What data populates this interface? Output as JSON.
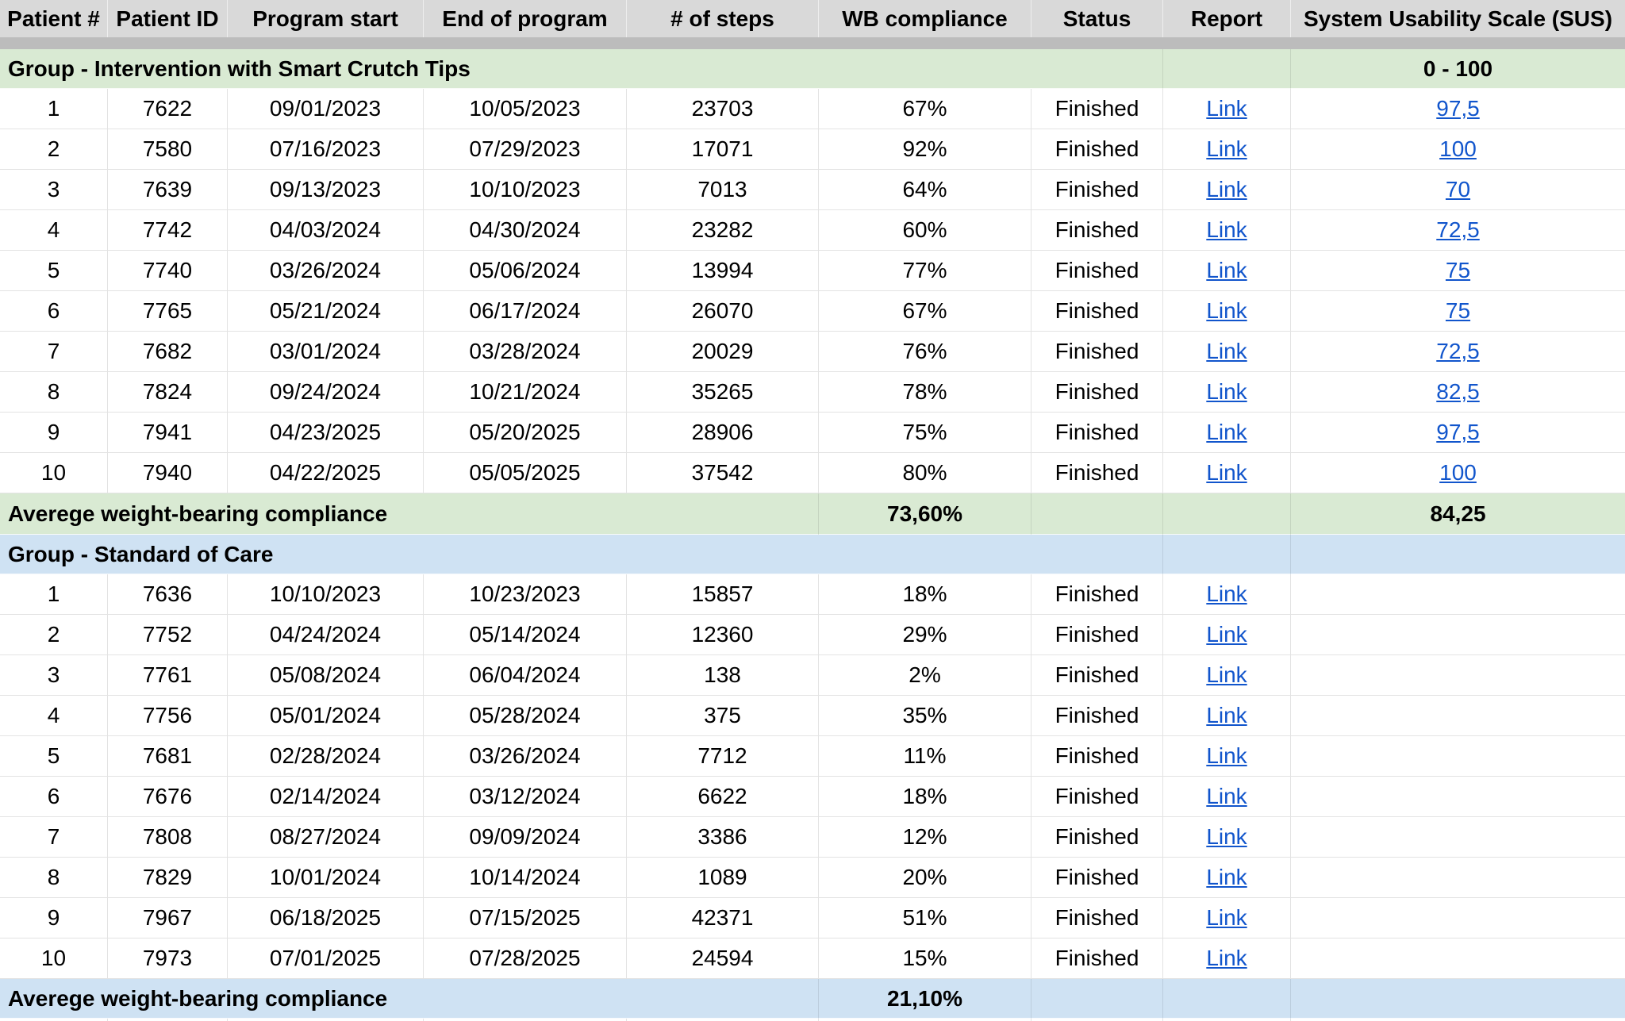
{
  "table": {
    "columns": [
      "Patient #",
      "Patient ID",
      "Program start",
      "End of program",
      "# of steps",
      "WB compliance",
      "Status",
      "Report",
      "System Usability Scale (SUS)"
    ],
    "groups": [
      {
        "label": "Group - Intervention with Smart Crutch Tips",
        "sus_range": "0 - 100",
        "fill_color": "#d9ead3",
        "rows": [
          {
            "num": "1",
            "id": "7622",
            "start": "09/01/2023",
            "end": "10/05/2023",
            "steps": "23703",
            "compliance": "67%",
            "status": "Finished",
            "report": "Link",
            "sus": "97,5"
          },
          {
            "num": "2",
            "id": "7580",
            "start": "07/16/2023",
            "end": "07/29/2023",
            "steps": "17071",
            "compliance": "92%",
            "status": "Finished",
            "report": "Link",
            "sus": "100"
          },
          {
            "num": "3",
            "id": "7639",
            "start": "09/13/2023",
            "end": "10/10/2023",
            "steps": "7013",
            "compliance": "64%",
            "status": "Finished",
            "report": "Link",
            "sus": "70"
          },
          {
            "num": "4",
            "id": "7742",
            "start": "04/03/2024",
            "end": "04/30/2024",
            "steps": "23282",
            "compliance": "60%",
            "status": "Finished",
            "report": "Link",
            "sus": "72,5"
          },
          {
            "num": "5",
            "id": "7740",
            "start": "03/26/2024",
            "end": "05/06/2024",
            "steps": "13994",
            "compliance": "77%",
            "status": "Finished",
            "report": "Link",
            "sus": "75"
          },
          {
            "num": "6",
            "id": "7765",
            "start": "05/21/2024",
            "end": "06/17/2024",
            "steps": "26070",
            "compliance": "67%",
            "status": "Finished",
            "report": "Link",
            "sus": "75"
          },
          {
            "num": "7",
            "id": "7682",
            "start": "03/01/2024",
            "end": "03/28/2024",
            "steps": "20029",
            "compliance": "76%",
            "status": "Finished",
            "report": "Link",
            "sus": "72,5"
          },
          {
            "num": "8",
            "id": "7824",
            "start": "09/24/2024",
            "end": "10/21/2024",
            "steps": "35265",
            "compliance": "78%",
            "status": "Finished",
            "report": "Link",
            "sus": "82,5"
          },
          {
            "num": "9",
            "id": "7941",
            "start": "04/23/2025",
            "end": "05/20/2025",
            "steps": "28906",
            "compliance": "75%",
            "status": "Finished",
            "report": "Link",
            "sus": "97,5"
          },
          {
            "num": "10",
            "id": "7940",
            "start": "04/22/2025",
            "end": "05/05/2025",
            "steps": "37542",
            "compliance": "80%",
            "status": "Finished",
            "report": "Link",
            "sus": "100"
          }
        ],
        "average": {
          "label": "Averege weight-bearing compliance",
          "compliance": "73,60%",
          "sus": "84,25"
        }
      },
      {
        "label": "Group - Standard of Care",
        "sus_range": "",
        "fill_color": "#cfe2f3",
        "rows": [
          {
            "num": "1",
            "id": "7636",
            "start": "10/10/2023",
            "end": "10/23/2023",
            "steps": "15857",
            "compliance": "18%",
            "status": "Finished",
            "report": "Link",
            "sus": ""
          },
          {
            "num": "2",
            "id": "7752",
            "start": "04/24/2024",
            "end": "05/14/2024",
            "steps": "12360",
            "compliance": "29%",
            "status": "Finished",
            "report": "Link",
            "sus": ""
          },
          {
            "num": "3",
            "id": "7761",
            "start": "05/08/2024",
            "end": "06/04/2024",
            "steps": "138",
            "compliance": "2%",
            "status": "Finished",
            "report": "Link",
            "sus": ""
          },
          {
            "num": "4",
            "id": "7756",
            "start": "05/01/2024",
            "end": "05/28/2024",
            "steps": "375",
            "compliance": "35%",
            "status": "Finished",
            "report": "Link",
            "sus": ""
          },
          {
            "num": "5",
            "id": "7681",
            "start": "02/28/2024",
            "end": "03/26/2024",
            "steps": "7712",
            "compliance": "11%",
            "status": "Finished",
            "report": "Link",
            "sus": ""
          },
          {
            "num": "6",
            "id": "7676",
            "start": "02/14/2024",
            "end": "03/12/2024",
            "steps": "6622",
            "compliance": "18%",
            "status": "Finished",
            "report": "Link",
            "sus": ""
          },
          {
            "num": "7",
            "id": "7808",
            "start": "08/27/2024",
            "end": "09/09/2024",
            "steps": "3386",
            "compliance": "12%",
            "status": "Finished",
            "report": "Link",
            "sus": ""
          },
          {
            "num": "8",
            "id": "7829",
            "start": "10/01/2024",
            "end": "10/14/2024",
            "steps": "1089",
            "compliance": "20%",
            "status": "Finished",
            "report": "Link",
            "sus": ""
          },
          {
            "num": "9",
            "id": "7967",
            "start": "06/18/2025",
            "end": "07/15/2025",
            "steps": "42371",
            "compliance": "51%",
            "status": "Finished",
            "report": "Link",
            "sus": ""
          },
          {
            "num": "10",
            "id": "7973",
            "start": "07/01/2025",
            "end": "07/28/2025",
            "steps": "24594",
            "compliance": "15%",
            "status": "Finished",
            "report": "Link",
            "sus": ""
          }
        ],
        "average": {
          "label": "Averege weight-bearing compliance",
          "compliance": "21,10%",
          "sus": ""
        }
      }
    ],
    "colors": {
      "header_bg": "#d9d9d9",
      "separator": "#bcbcbc",
      "gridline": "#e3e3e3",
      "link": "#1155cc",
      "group1_fill": "#d9ead3",
      "group2_fill": "#cfe2f3"
    }
  }
}
